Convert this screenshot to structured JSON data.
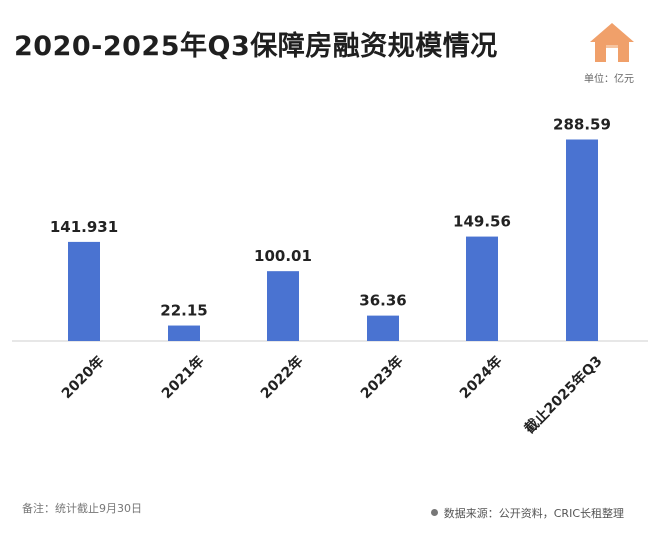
{
  "header": {
    "title": "2020-2025年Q3保障房融资规模情况",
    "unit": "单位：亿元"
  },
  "footer": {
    "note": "备注：统计截止9月30日",
    "source": "数据来源：公开资料，CRIC长租整理"
  },
  "colors": {
    "bar": "#4a73d1",
    "logo": "#f0a06a"
  },
  "chart_data": {
    "type": "bar",
    "title": "2020-2025年Q3保障房融资规模情况",
    "xlabel": "",
    "ylabel": "",
    "unit": "亿元",
    "categories": [
      "2020年",
      "2021年",
      "2022年",
      "2023年",
      "2024年",
      "截止2025年Q3"
    ],
    "values": [
      141.931,
      22.15,
      100.01,
      36.36,
      149.56,
      288.59
    ],
    "value_labels": [
      "141.931",
      "22.15",
      "100.01",
      "36.36",
      "149.56",
      "288.59"
    ],
    "ylim": [
      0,
      300
    ],
    "grid": false,
    "legend": "none"
  }
}
